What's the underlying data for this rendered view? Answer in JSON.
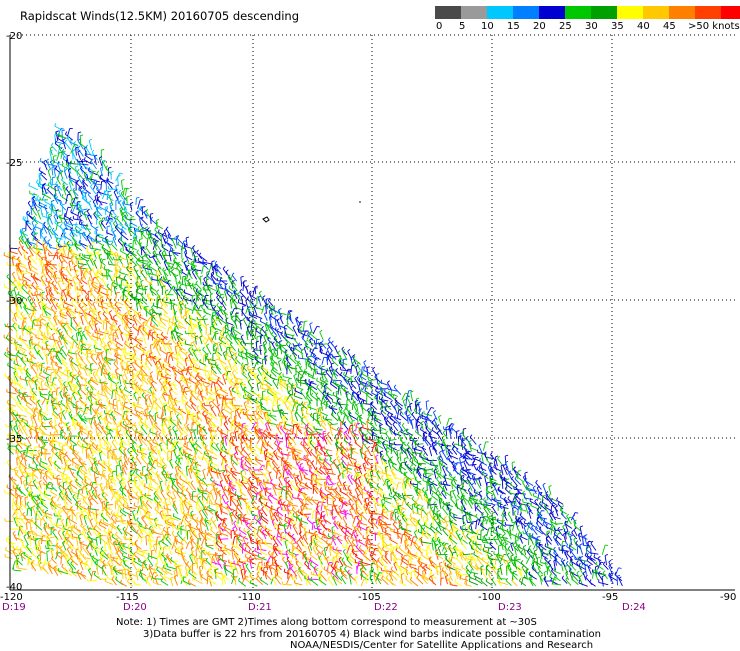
{
  "title": "Rapidscat Winds(12.5KM) 20160705 descending",
  "scale": {
    "colors": [
      "#4a4a4a",
      "#9a9a9a",
      "#00c8ff",
      "#0080ff",
      "#0000d0",
      "#00c800",
      "#00a000",
      "#ffff00",
      "#ffc800",
      "#ff8000",
      "#ff4000",
      "#ff0000",
      "#a05030",
      "#6a3000",
      "#ff00ff",
      "#b000ff",
      "#6000c0"
    ],
    "labels": [
      "0",
      "5",
      "10",
      "15",
      "20",
      "25",
      "30",
      "35",
      "40",
      "45",
      ">50 knots"
    ]
  },
  "map": {
    "lat_labels": [
      "-20",
      "-25",
      "-30",
      "-35",
      "-40"
    ],
    "lon_labels": [
      "-120",
      "-115",
      "-110",
      "-105",
      "-100",
      "-95",
      "-90"
    ],
    "time_labels": [
      "D:19",
      "D:20",
      "D:21",
      "D:22",
      "D:23",
      "D:24"
    ]
  },
  "notes": {
    "line1": "Note: 1) Times are GMT 2)Times along bottom correspond to measurement at ~30S",
    "line2": "3)Data buffer is 22 hrs from 20160705 4) Black wind barbs indicate possible contamination",
    "line3": "NOAA/NESDIS/Center for Satellite Applications and Research"
  }
}
